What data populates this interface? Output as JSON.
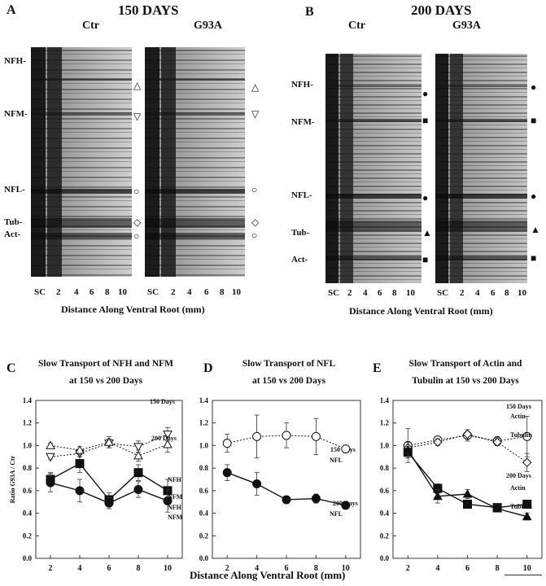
{
  "panel_a": {
    "letter": "A",
    "title": "150 DAYS",
    "ctr": "Ctr",
    "g93a": "G93A",
    "bands": [
      "NFH-",
      "NFM-",
      "NFL-",
      "Tub-",
      "Act-"
    ],
    "lanes_ctr": [
      "SC",
      "2",
      "4",
      "6",
      "8",
      "10"
    ],
    "lanes_g93a": [
      "SC",
      "2",
      "4",
      "6",
      "8",
      "10"
    ],
    "xlabel": "Distance Along Ventral Root (mm)",
    "markers_ctr": [
      "△",
      "▽",
      "○",
      "◇",
      "○"
    ],
    "markers_g93a": [
      "△",
      "▽",
      "○",
      "◇",
      "○"
    ]
  },
  "panel_b": {
    "letter": "B",
    "title": "200 DAYS",
    "ctr": "Ctr",
    "g93a": "G93A",
    "bands": [
      "NFH-",
      "NFM-",
      "NFL-",
      "Tub-",
      "Act-"
    ],
    "lanes_ctr": [
      "SC",
      "2",
      "4",
      "6",
      "8",
      "10"
    ],
    "lanes_g93a": [
      "SC",
      "2",
      "4",
      "6",
      "8",
      "10"
    ],
    "xlabel": "Distance Along Ventral Root (mm)",
    "markers_ctr": [
      "●",
      "■",
      "●",
      "▲",
      "■"
    ],
    "markers_g93a": [
      "●",
      "■",
      "●",
      "▲",
      "■"
    ]
  },
  "shared_xlabel": "Distance Along Ventral Root (mm)",
  "chart_data": [
    {
      "letter": "C",
      "type": "line",
      "title_line1": "Slow Transport of NFH and NFM",
      "title_line2": "at 150 vs 200 Days",
      "ylabel": "Ratio G93A / Ctr",
      "x": [
        2,
        4,
        6,
        8,
        10
      ],
      "ylim": [
        0,
        1.4
      ],
      "yticks": [
        "0.0",
        "0.2",
        "0.4",
        "0.6",
        "0.8",
        "1.0",
        "1.2",
        "1.4"
      ],
      "xticks": [
        "2",
        "4",
        "6",
        "8",
        "10"
      ],
      "group_labels": [
        "150 Days",
        "200 Days"
      ],
      "series": [
        {
          "name": "NFM",
          "group": "150 Days",
          "marker": "tri-down-open",
          "dashed": true,
          "values": [
            0.9,
            0.93,
            1.02,
            0.99,
            1.1
          ],
          "err": [
            0.02,
            0.03,
            0.04,
            0.05,
            0.06
          ]
        },
        {
          "name": "NFH",
          "group": "150 Days",
          "marker": "tri-up-open",
          "dashed": true,
          "values": [
            1.0,
            0.96,
            1.03,
            0.91,
            1.01
          ],
          "err": [
            0.02,
            0.03,
            0.05,
            0.05,
            0.07
          ]
        },
        {
          "name": "NFM",
          "group": "200 Days",
          "marker": "square-filled",
          "dashed": false,
          "values": [
            0.7,
            0.84,
            0.52,
            0.76,
            0.6
          ],
          "err": [
            0.06,
            0.08,
            0.06,
            0.07,
            0.1
          ]
        },
        {
          "name": "NFH",
          "group": "200 Days",
          "marker": "circle-filled",
          "dashed": false,
          "values": [
            0.67,
            0.6,
            0.49,
            0.61,
            0.51
          ],
          "err": [
            0.08,
            0.1,
            0.05,
            0.07,
            0.1
          ]
        }
      ]
    },
    {
      "letter": "D",
      "type": "line",
      "title_line1": "Slow Transport of NFL",
      "title_line2": "at 150 vs 200 Days",
      "ylabel": "",
      "x": [
        2,
        4,
        6,
        8,
        10
      ],
      "ylim": [
        0,
        1.4
      ],
      "yticks": [
        "0.0",
        "0.2",
        "0.4",
        "0.6",
        "0.8",
        "1.0",
        "1.2",
        "1.4"
      ],
      "xticks": [
        "2",
        "4",
        "6",
        "8",
        "10"
      ],
      "group_labels": [
        "150 Days",
        "200 Days"
      ],
      "series": [
        {
          "name": "NFL",
          "group": "150 Days",
          "marker": "circle-open",
          "dashed": true,
          "values": [
            1.02,
            1.08,
            1.09,
            1.08,
            0.97
          ],
          "err": [
            0.08,
            0.19,
            0.11,
            0.16,
            0.03
          ]
        },
        {
          "name": "NFL",
          "group": "200 Days",
          "marker": "circle-filled",
          "dashed": false,
          "values": [
            0.76,
            0.66,
            0.52,
            0.53,
            0.47
          ],
          "err": [
            0.07,
            0.1,
            0.03,
            0.04,
            0.02
          ]
        }
      ]
    },
    {
      "letter": "E",
      "type": "line",
      "title_line1": "Slow Transport of Actin and",
      "title_line2": "Tubulin at 150 vs 200 Days",
      "ylabel": "",
      "x": [
        2,
        4,
        6,
        8,
        10
      ],
      "ylim": [
        0,
        1.4
      ],
      "yticks": [
        "0.0",
        "0.2",
        "0.4",
        "0.6",
        "0.8",
        "1.0",
        "1.2",
        "1.4"
      ],
      "xticks": [
        "2",
        "4",
        "6",
        "8",
        "10"
      ],
      "group_labels": [
        "150 Days",
        "200 Days"
      ],
      "series": [
        {
          "name": "Actin",
          "group": "150 Days",
          "marker": "circle-open",
          "dashed": true,
          "values": [
            1.0,
            1.05,
            1.09,
            1.04,
            1.08
          ],
          "err": [
            0.15,
            0.03,
            0.05,
            0.04,
            0.18
          ]
        },
        {
          "name": "Tubulin",
          "group": "150 Days",
          "marker": "diamond-open",
          "dashed": true,
          "values": [
            0.98,
            1.03,
            1.1,
            1.03,
            0.85
          ],
          "err": [
            0.05,
            0.03,
            0.04,
            0.03,
            0.08
          ]
        },
        {
          "name": "Actin",
          "group": "200 Days",
          "marker": "square-filled",
          "dashed": false,
          "values": [
            0.94,
            0.62,
            0.48,
            0.45,
            0.48
          ],
          "err": [
            0.05,
            0.04,
            0.03,
            0.03,
            0.02
          ]
        },
        {
          "name": "Tubulin",
          "group": "200 Days",
          "marker": "tri-up-filled",
          "dashed": false,
          "values": [
            0.96,
            0.55,
            0.57,
            0.44,
            0.37
          ],
          "err": [
            0.07,
            0.06,
            0.04,
            0.03,
            0.03
          ]
        }
      ]
    }
  ]
}
